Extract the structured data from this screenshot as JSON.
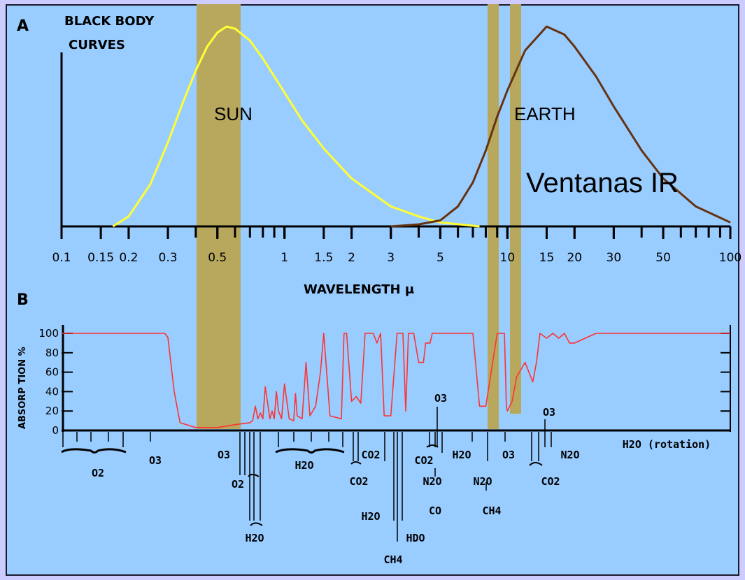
{
  "chart_data": [
    {
      "type": "line",
      "panel_label": "A",
      "title": "BLACK BODY CURVES",
      "title_lines": [
        "BLACK BODY",
        "CURVES"
      ],
      "xlabel": "WAVELENGTH μ",
      "xscale": "log",
      "xlim": [
        0.1,
        100
      ],
      "ylim": [
        0,
        1
      ],
      "tick_labels": [
        "0.1",
        "0.15",
        "0.2",
        "0.3",
        "0.5",
        "1",
        "1.5",
        "2",
        "3",
        "5",
        "10",
        "15",
        "20",
        "30",
        "50",
        "100"
      ],
      "tick_values": [
        0.1,
        0.15,
        0.2,
        0.3,
        0.5,
        1,
        1.5,
        2,
        3,
        5,
        10,
        15,
        20,
        30,
        50,
        100
      ],
      "series": [
        {
          "name": "SUN",
          "color": "#ffff33",
          "x": [
            0.17,
            0.2,
            0.25,
            0.3,
            0.35,
            0.4,
            0.45,
            0.5,
            0.55,
            0.6,
            0.7,
            0.8,
            1.0,
            1.2,
            1.5,
            2.0,
            3.0,
            4.0,
            5.0,
            7.5
          ],
          "y": [
            0.0,
            0.05,
            0.21,
            0.42,
            0.62,
            0.78,
            0.9,
            0.97,
            1.0,
            0.99,
            0.93,
            0.84,
            0.67,
            0.53,
            0.39,
            0.24,
            0.1,
            0.05,
            0.02,
            0.0
          ]
        },
        {
          "name": "EARTH",
          "color": "#663311",
          "x": [
            3,
            4,
            5,
            6,
            7,
            8,
            9,
            10,
            12,
            15,
            18,
            20,
            25,
            30,
            40,
            50,
            70,
            100
          ],
          "y": [
            0.0,
            0.01,
            0.03,
            0.1,
            0.22,
            0.38,
            0.55,
            0.68,
            0.88,
            1.0,
            0.96,
            0.9,
            0.75,
            0.6,
            0.38,
            0.24,
            0.1,
            0.02
          ]
        }
      ],
      "annotations": [
        "SUN",
        "EARTH",
        "Ventanas IR"
      ]
    },
    {
      "type": "line",
      "panel_label": "B",
      "ylabel": "ABSORP TION %",
      "xscale": "log",
      "xlim": [
        0.1,
        100
      ],
      "ylim": [
        0,
        100
      ],
      "ytick_labels": [
        "100",
        "80",
        "60",
        "40",
        "20",
        "0"
      ],
      "ytick_values": [
        100,
        80,
        60,
        40,
        20,
        0
      ],
      "series": [
        {
          "name": "",
          "color": "#ff3333",
          "x": [
            0.1,
            0.29,
            0.3,
            0.32,
            0.34,
            0.4,
            0.5,
            0.6,
            0.7,
            0.72,
            0.74,
            0.76,
            0.78,
            0.8,
            0.82,
            0.86,
            0.88,
            0.9,
            0.92,
            0.94,
            0.97,
            1.0,
            1.05,
            1.1,
            1.12,
            1.14,
            1.2,
            1.25,
            1.3,
            1.38,
            1.45,
            1.5,
            1.6,
            1.8,
            1.85,
            1.9,
            2.0,
            2.1,
            2.2,
            2.3,
            2.5,
            2.6,
            2.7,
            2.8,
            2.9,
            3.0,
            3.2,
            3.4,
            3.5,
            3.6,
            3.8,
            4.0,
            4.2,
            4.3,
            4.5,
            4.6,
            4.8,
            5.0,
            5.5,
            6.0,
            7.0,
            7.5,
            8.0,
            9.0,
            9.5,
            9.6,
            9.7,
            9.9,
            10.0,
            10.5,
            11.0,
            12.0,
            13.0,
            13.5,
            14.0,
            15.0,
            16.0,
            17.0,
            18.0,
            18.5,
            19.0,
            20.0,
            25.0,
            100.0
          ],
          "y": [
            100,
            100,
            96,
            40,
            8,
            3,
            3,
            6,
            8,
            10,
            25,
            12,
            18,
            12,
            45,
            12,
            20,
            12,
            40,
            20,
            12,
            48,
            12,
            10,
            38,
            15,
            12,
            70,
            15,
            25,
            60,
            100,
            15,
            12,
            100,
            100,
            30,
            35,
            28,
            100,
            100,
            90,
            100,
            15,
            15,
            15,
            100,
            100,
            20,
            100,
            100,
            70,
            70,
            90,
            90,
            100,
            100,
            100,
            100,
            100,
            100,
            25,
            25,
            100,
            100,
            100,
            100,
            25,
            20,
            30,
            55,
            70,
            50,
            70,
            100,
            95,
            100,
            95,
            100,
            95,
            90,
            90,
            100,
            100
          ]
        }
      ],
      "bottom_labels": [
        "O2",
        "O3",
        "O3",
        "O2",
        "H2O",
        "H2O",
        "CO2",
        "CO2",
        "H2O",
        "CH4",
        "HDO",
        "CO2",
        "N2O",
        "CO",
        "O3",
        "H2O",
        "N2O",
        "CH4",
        "O3",
        "O3",
        "CO2",
        "N2O",
        "H2O (rotation)"
      ]
    }
  ],
  "highlight_color": "#b8a85e"
}
